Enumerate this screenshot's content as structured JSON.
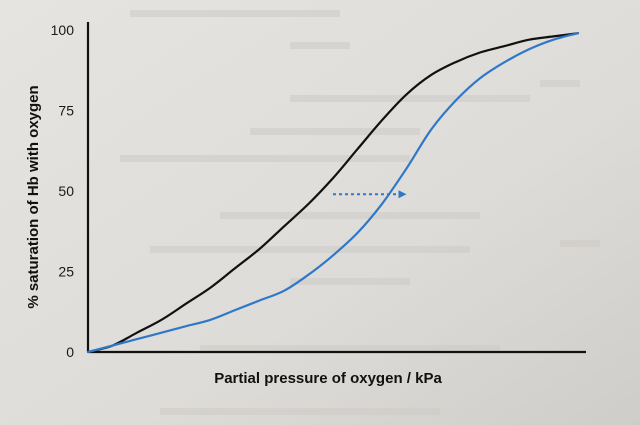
{
  "chart_data": {
    "type": "line",
    "title": "",
    "xlabel": "Partial pressure of oxygen / kPa",
    "ylabel": "% saturation of Hb with oxygen",
    "ylim": [
      0,
      100
    ],
    "xlim": [
      0,
      10
    ],
    "x_ticks_shown": false,
    "y_ticks": [
      "0",
      "25",
      "50",
      "75",
      "100"
    ],
    "grid": false,
    "legend": "none",
    "series": [
      {
        "color": "#111111",
        "x": [
          0,
          0.5,
          1,
          1.5,
          2,
          2.5,
          3,
          3.5,
          4,
          4.5,
          5,
          5.5,
          6,
          6.5,
          7,
          7.5,
          8,
          8.5,
          9,
          9.5,
          10
        ],
        "values": [
          0,
          2,
          6,
          10,
          15,
          20,
          26,
          32,
          39,
          46,
          54,
          63,
          72,
          80,
          86,
          90,
          93,
          95,
          97,
          98,
          99
        ]
      },
      {
        "color": "#2f78c8",
        "x": [
          0,
          0.5,
          1,
          1.5,
          2,
          2.5,
          3,
          3.5,
          4,
          4.5,
          5,
          5.5,
          6,
          6.5,
          7,
          7.5,
          8,
          8.5,
          9,
          9.5,
          10
        ],
        "values": [
          0,
          2,
          4,
          6,
          8,
          10,
          13,
          16,
          19,
          24,
          30,
          37,
          46,
          57,
          69,
          78,
          85,
          90,
          94,
          97,
          99
        ]
      }
    ],
    "annotations": [
      {
        "type": "dotted-arrow",
        "color": "#2f78c8",
        "from": [
          5.0,
          49
        ],
        "to": [
          6.5,
          49
        ],
        "direction": "right"
      }
    ]
  }
}
